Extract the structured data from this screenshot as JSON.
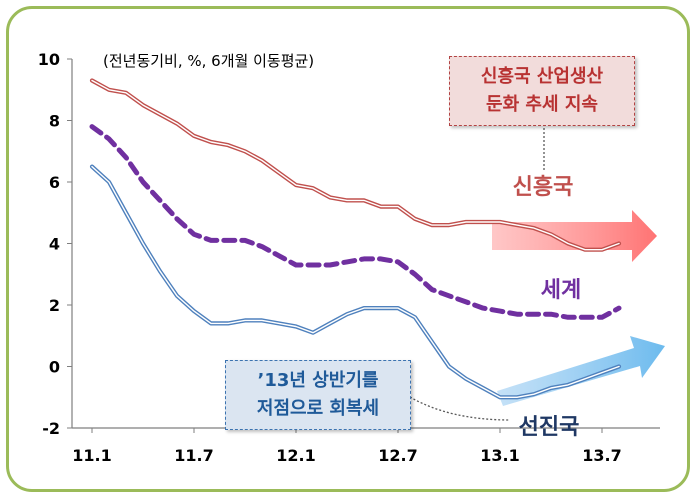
{
  "chart_data": {
    "type": "line",
    "unit_note": "(전년동기비, %, 6개월 이동평균)",
    "x_ticks": [
      "11.1",
      "11.7",
      "12.1",
      "12.7",
      "13.1",
      "13.7"
    ],
    "y_ticks": [
      "10",
      "8",
      "6",
      "4",
      "2",
      "0",
      "-2"
    ],
    "ylim": [
      -2,
      10
    ],
    "grid": false,
    "series": [
      {
        "name": "신흥국",
        "color": "#c0504d",
        "style": "double-line",
        "x": [
          "11.1",
          "11.2",
          "11.3",
          "11.4",
          "11.5",
          "11.6",
          "11.7",
          "11.8",
          "11.9",
          "11.10",
          "11.11",
          "11.12",
          "12.1",
          "12.2",
          "12.3",
          "12.4",
          "12.5",
          "12.6",
          "12.7",
          "12.8",
          "12.9",
          "12.10",
          "12.11",
          "12.12",
          "13.1",
          "13.2",
          "13.3",
          "13.4",
          "13.5",
          "13.6",
          "13.7",
          "13.8"
        ],
        "values": [
          9.3,
          9.0,
          8.9,
          8.5,
          8.2,
          7.9,
          7.5,
          7.3,
          7.2,
          7.0,
          6.7,
          6.3,
          5.9,
          5.8,
          5.5,
          5.4,
          5.4,
          5.2,
          5.2,
          4.8,
          4.6,
          4.6,
          4.7,
          4.7,
          4.7,
          4.6,
          4.5,
          4.3,
          4.0,
          3.8,
          3.8,
          4.0
        ]
      },
      {
        "name": "세계",
        "color": "#7030a0",
        "style": "dashed",
        "x": [
          "11.1",
          "11.2",
          "11.3",
          "11.4",
          "11.5",
          "11.6",
          "11.7",
          "11.8",
          "11.9",
          "11.10",
          "11.11",
          "11.12",
          "12.1",
          "12.2",
          "12.3",
          "12.4",
          "12.5",
          "12.6",
          "12.7",
          "12.8",
          "12.9",
          "12.10",
          "12.11",
          "12.12",
          "13.1",
          "13.2",
          "13.3",
          "13.4",
          "13.5",
          "13.6",
          "13.7",
          "13.8"
        ],
        "values": [
          7.8,
          7.4,
          6.8,
          6.0,
          5.4,
          4.8,
          4.3,
          4.1,
          4.1,
          4.1,
          3.9,
          3.6,
          3.3,
          3.3,
          3.3,
          3.4,
          3.5,
          3.5,
          3.4,
          3.0,
          2.5,
          2.3,
          2.1,
          1.9,
          1.8,
          1.7,
          1.7,
          1.7,
          1.6,
          1.6,
          1.6,
          1.9
        ]
      },
      {
        "name": "선진국",
        "color": "#4f81bd",
        "style": "double-line",
        "x": [
          "11.1",
          "11.2",
          "11.3",
          "11.4",
          "11.5",
          "11.6",
          "11.7",
          "11.8",
          "11.9",
          "11.10",
          "11.11",
          "11.12",
          "12.1",
          "12.2",
          "12.3",
          "12.4",
          "12.5",
          "12.6",
          "12.7",
          "12.8",
          "12.9",
          "12.10",
          "12.11",
          "12.12",
          "13.1",
          "13.2",
          "13.3",
          "13.4",
          "13.5",
          "13.6",
          "13.7",
          "13.8"
        ],
        "values": [
          6.5,
          6.0,
          5.0,
          4.0,
          3.1,
          2.3,
          1.8,
          1.4,
          1.4,
          1.5,
          1.5,
          1.4,
          1.3,
          1.1,
          1.4,
          1.7,
          1.9,
          1.9,
          1.9,
          1.6,
          0.8,
          0.0,
          -0.4,
          -0.7,
          -1.0,
          -1.0,
          -0.9,
          -0.7,
          -0.6,
          -0.4,
          -0.2,
          0.0
        ]
      }
    ],
    "labels": [
      {
        "text": "신흥국",
        "color": "#c0504d"
      },
      {
        "text": "세계",
        "color": "#7030a0"
      },
      {
        "text": "선진국",
        "color": "#1f3864"
      }
    ],
    "annotations": [
      {
        "line1": "신흥국 산업생산",
        "line2": "둔화 추세 지속"
      },
      {
        "line1": "’13년 상반기를",
        "line2": "저점으로 회복세"
      }
    ]
  }
}
